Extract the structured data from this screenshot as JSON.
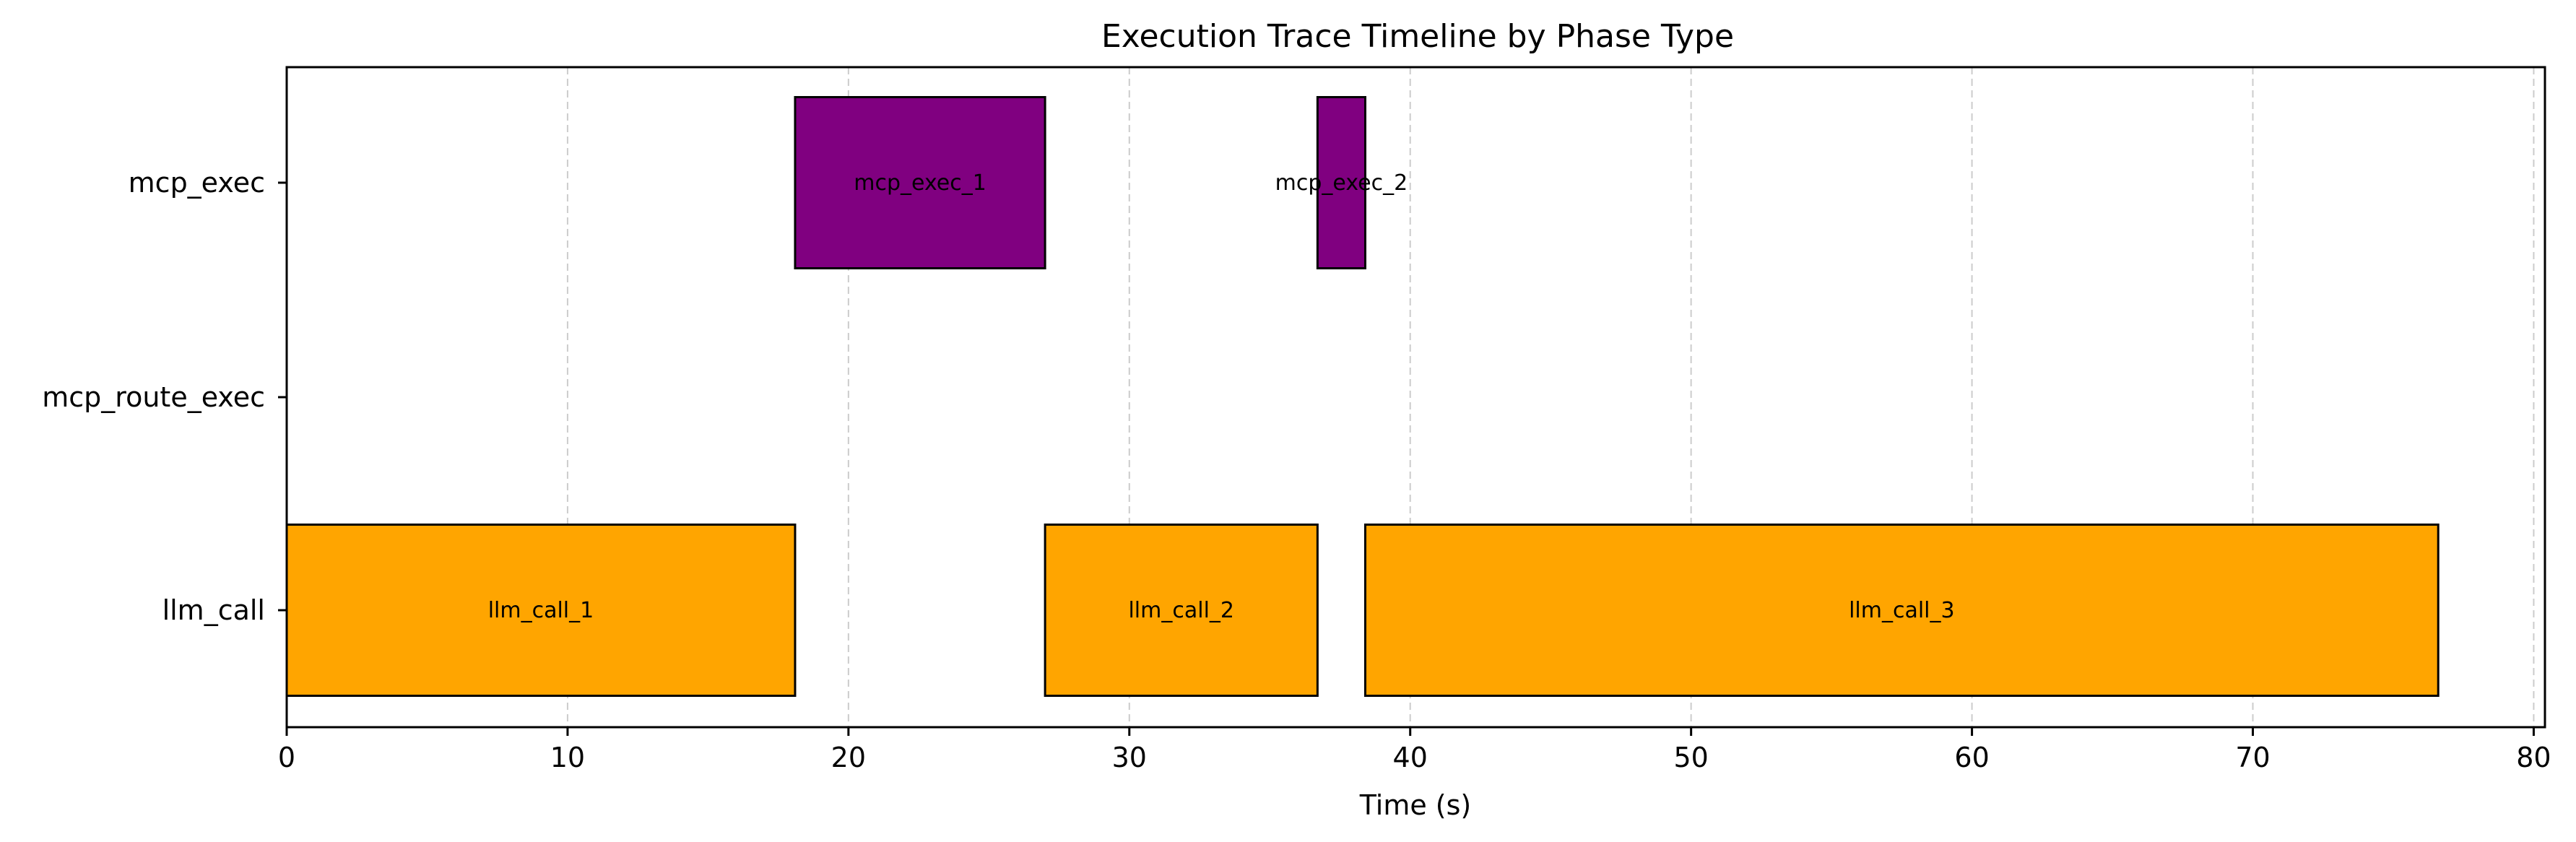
{
  "chart_data": {
    "type": "bar",
    "orientation": "horizontal-gantt",
    "title": "Execution Trace Timeline by Phase Type",
    "xlabel": "Time (s)",
    "ylabel": "",
    "xlim": [
      0,
      80.4
    ],
    "xticks": [
      0,
      10,
      20,
      30,
      40,
      50,
      60,
      70,
      80
    ],
    "categories": [
      "llm_call",
      "mcp_route_exec",
      "mcp_exec"
    ],
    "grid": "x-dashed",
    "legend": "none",
    "colors": {
      "llm_call": "#FFA500",
      "mcp_exec": "#800080",
      "edge": "#000000",
      "grid": "#cccccc"
    },
    "bars": [
      {
        "label": "llm_call_1",
        "category": "llm_call",
        "start": 0.0,
        "end": 18.1
      },
      {
        "label": "mcp_exec_1",
        "category": "mcp_exec",
        "start": 18.1,
        "end": 27.0
      },
      {
        "label": "llm_call_2",
        "category": "llm_call",
        "start": 27.0,
        "end": 36.7
      },
      {
        "label": "mcp_exec_2",
        "category": "mcp_exec",
        "start": 36.7,
        "end": 38.4
      },
      {
        "label": "llm_call_3",
        "category": "llm_call",
        "start": 38.4,
        "end": 76.6
      }
    ]
  }
}
